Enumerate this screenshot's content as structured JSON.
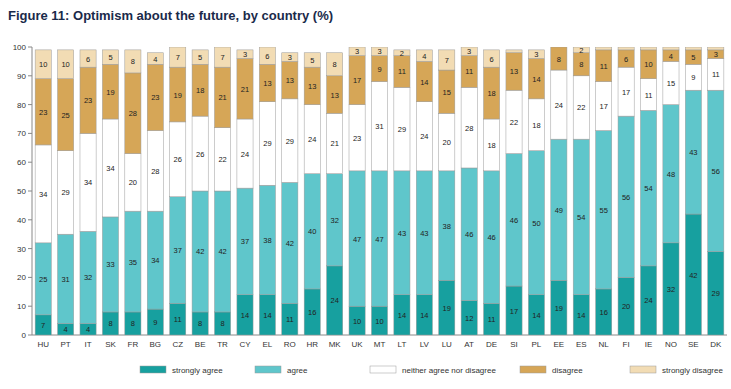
{
  "chart_data": {
    "type": "bar",
    "title": "Figure 11: Optimism about the future, by country (%)",
    "categories": [
      "HU",
      "PT",
      "IT",
      "SK",
      "FR",
      "BG",
      "CZ",
      "BE",
      "TR",
      "CY",
      "EL",
      "RO",
      "HR",
      "MK",
      "UK",
      "MT",
      "LT",
      "LV",
      "LU",
      "AT",
      "DE",
      "SI",
      "PL",
      "EE",
      "ES",
      "NL",
      "FI",
      "IE",
      "NO",
      "SE",
      "DK"
    ],
    "series": [
      {
        "name": "strongly agree",
        "color": "#17a09f",
        "values": [
          7,
          4,
          4,
          8,
          8,
          9,
          11,
          8,
          8,
          14,
          14,
          11,
          16,
          24,
          10,
          10,
          14,
          14,
          19,
          12,
          11,
          17,
          14,
          19,
          14,
          16,
          20,
          24,
          32,
          42,
          29
        ]
      },
      {
        "name": "agree",
        "color": "#5fc6cb",
        "values": [
          25,
          31,
          32,
          33,
          35,
          34,
          37,
          42,
          42,
          37,
          38,
          42,
          40,
          32,
          47,
          47,
          43,
          43,
          38,
          46,
          46,
          46,
          50,
          49,
          54,
          55,
          56,
          54,
          48,
          43,
          56
        ]
      },
      {
        "name": "neither agree nor disagree",
        "color": "#ffffff",
        "values": [
          34,
          29,
          34,
          34,
          20,
          28,
          26,
          26,
          22,
          24,
          29,
          29,
          24,
          21,
          23,
          31,
          29,
          24,
          20,
          28,
          18,
          22,
          18,
          24,
          22,
          17,
          17,
          11,
          15,
          9,
          11
        ]
      },
      {
        "name": "disagree",
        "color": "#d6a657",
        "values": [
          23,
          25,
          23,
          19,
          28,
          23,
          19,
          18,
          21,
          21,
          13,
          13,
          13,
          13,
          17,
          9,
          11,
          14,
          15,
          11,
          18,
          13,
          14,
          8,
          8,
          11,
          6,
          10,
          4,
          5,
          3
        ]
      },
      {
        "name": "strongly disagree",
        "color": "#f2dcb4",
        "values": [
          10,
          10,
          6,
          5,
          8,
          4,
          7,
          5,
          7,
          3,
          6,
          3,
          5,
          8,
          3,
          3,
          2,
          4,
          7,
          3,
          6,
          1,
          3,
          0,
          2,
          1,
          1,
          1,
          1,
          1,
          1
        ]
      }
    ],
    "stacked": true,
    "data_labels": true,
    "grid": false,
    "ylim": [
      0,
      100
    ],
    "yticks": [
      0,
      10,
      20,
      30,
      40,
      50,
      60,
      70,
      80,
      90,
      100
    ]
  }
}
